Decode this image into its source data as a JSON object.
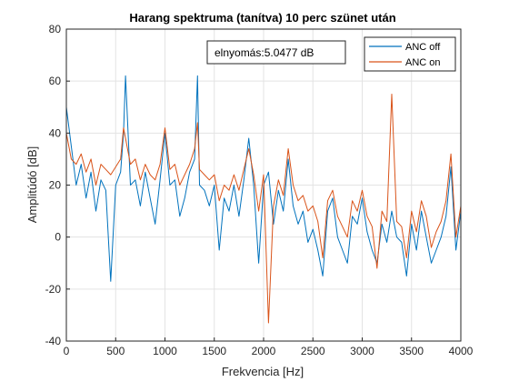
{
  "chart_data": {
    "type": "line",
    "title": "Harang spektruma (tanítva) 10 perc szünet után",
    "xlabel": "Frekvencia [Hz]",
    "ylabel": "Amplitúdó [dB]",
    "xlim": [
      0,
      4000
    ],
    "ylim": [
      -40,
      80
    ],
    "xticks": [
      0,
      500,
      1000,
      1500,
      2000,
      2500,
      3000,
      3500,
      4000
    ],
    "yticks": [
      -40,
      -20,
      0,
      20,
      40,
      60,
      80
    ],
    "grid": true,
    "legend_position": "top-right",
    "annotation": "elnyomás:5.0477 dB",
    "series": [
      {
        "name": "ANC off",
        "color": "#0072BD",
        "x": [
          0,
          50,
          100,
          150,
          200,
          250,
          300,
          350,
          400,
          450,
          500,
          550,
          580,
          600,
          650,
          700,
          750,
          800,
          850,
          900,
          950,
          1000,
          1050,
          1100,
          1150,
          1200,
          1250,
          1300,
          1330,
          1350,
          1400,
          1450,
          1500,
          1550,
          1600,
          1650,
          1700,
          1750,
          1800,
          1850,
          1900,
          1950,
          2000,
          2050,
          2100,
          2150,
          2200,
          2250,
          2300,
          2350,
          2400,
          2450,
          2500,
          2550,
          2600,
          2650,
          2700,
          2750,
          2800,
          2850,
          2900,
          2950,
          3000,
          3050,
          3100,
          3150,
          3200,
          3250,
          3300,
          3350,
          3400,
          3450,
          3500,
          3550,
          3600,
          3650,
          3700,
          3750,
          3800,
          3850,
          3900,
          3950,
          4000
        ],
        "values": [
          50,
          35,
          20,
          28,
          15,
          25,
          10,
          22,
          18,
          -17,
          20,
          25,
          40,
          62,
          20,
          22,
          12,
          25,
          15,
          5,
          22,
          40,
          20,
          22,
          8,
          15,
          25,
          30,
          62,
          20,
          18,
          12,
          20,
          -5,
          15,
          10,
          20,
          8,
          22,
          38,
          20,
          -10,
          20,
          25,
          5,
          18,
          10,
          30,
          12,
          5,
          10,
          -2,
          3,
          -5,
          -15,
          10,
          15,
          0,
          -5,
          -10,
          8,
          5,
          15,
          2,
          -5,
          -10,
          5,
          -2,
          10,
          0,
          -2,
          -15,
          5,
          -5,
          10,
          0,
          -10,
          -5,
          0,
          8,
          27,
          -5,
          10
        ]
      },
      {
        "name": "ANC on",
        "color": "#D95319",
        "x": [
          0,
          50,
          100,
          150,
          200,
          250,
          300,
          350,
          400,
          450,
          500,
          550,
          580,
          600,
          650,
          700,
          750,
          800,
          850,
          900,
          950,
          1000,
          1050,
          1100,
          1150,
          1200,
          1250,
          1300,
          1330,
          1350,
          1400,
          1450,
          1500,
          1550,
          1600,
          1650,
          1700,
          1750,
          1800,
          1850,
          1900,
          1950,
          2000,
          2050,
          2100,
          2150,
          2200,
          2250,
          2300,
          2350,
          2400,
          2450,
          2500,
          2550,
          2600,
          2650,
          2700,
          2750,
          2800,
          2850,
          2900,
          2950,
          3000,
          3050,
          3100,
          3150,
          3200,
          3250,
          3300,
          3350,
          3400,
          3450,
          3500,
          3550,
          3600,
          3650,
          3700,
          3750,
          3800,
          3850,
          3900,
          3950,
          4000
        ],
        "values": [
          40,
          30,
          28,
          32,
          25,
          30,
          20,
          28,
          26,
          24,
          27,
          30,
          42,
          38,
          28,
          30,
          22,
          28,
          24,
          22,
          28,
          42,
          26,
          28,
          20,
          24,
          28,
          34,
          44,
          26,
          24,
          22,
          24,
          14,
          20,
          18,
          24,
          18,
          26,
          34,
          24,
          10,
          24,
          -33,
          12,
          22,
          16,
          34,
          20,
          14,
          16,
          10,
          12,
          6,
          -8,
          14,
          18,
          8,
          4,
          0,
          14,
          10,
          18,
          8,
          4,
          -12,
          10,
          6,
          55,
          6,
          4,
          -8,
          10,
          2,
          14,
          8,
          -4,
          2,
          6,
          14,
          32,
          0,
          12
        ]
      }
    ]
  }
}
